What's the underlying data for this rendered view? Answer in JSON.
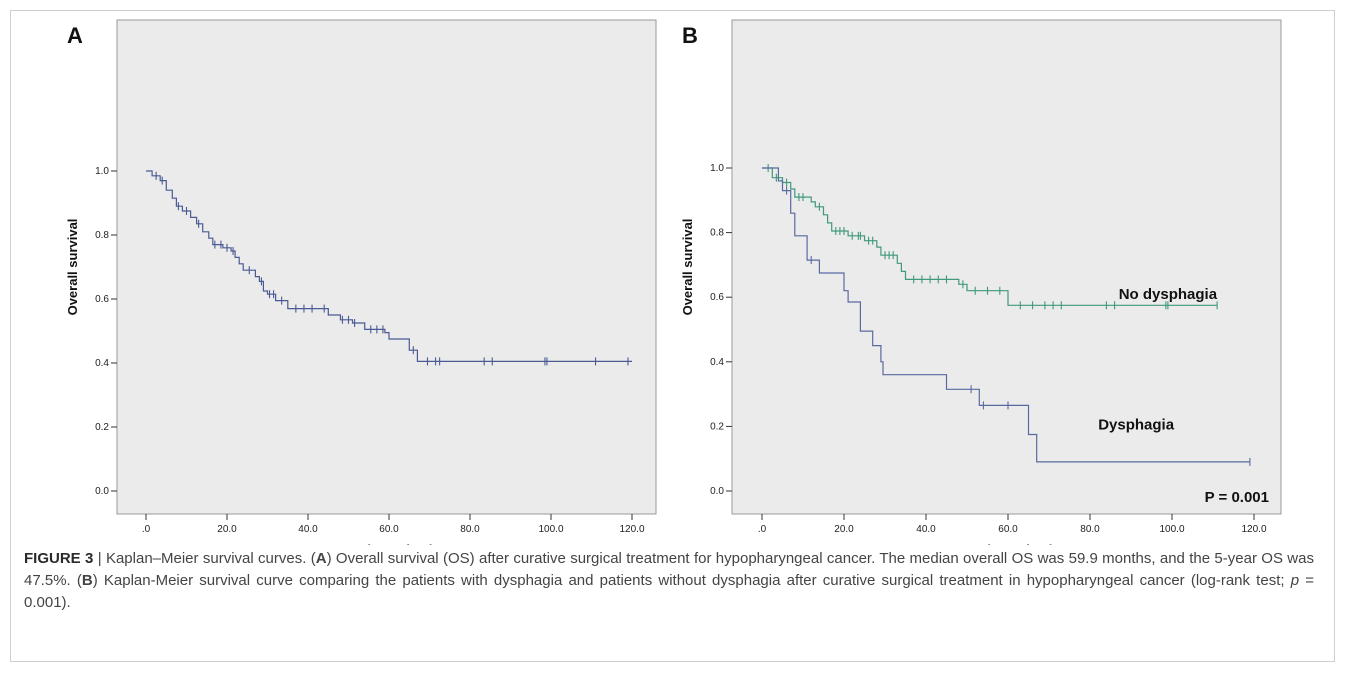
{
  "chart_data": [
    {
      "panel_label": "A",
      "type": "line",
      "step": true,
      "xlabel": "Months to death",
      "ylabel": "Overall survival",
      "xlim": [
        0,
        120
      ],
      "ylim": [
        0,
        1
      ],
      "x_ticks": [
        0,
        20,
        40,
        60,
        80,
        100,
        120
      ],
      "x_tick_labels": [
        ".0",
        "20.0",
        "40.0",
        "60.0",
        "80.0",
        "100.0",
        "120.0"
      ],
      "y_ticks": [
        0,
        0.2,
        0.4,
        0.6,
        0.8,
        1.0
      ],
      "y_tick_labels": [
        "0.0",
        "0.2",
        "0.4",
        "0.6",
        "0.8",
        "1.0"
      ],
      "series": [
        {
          "color": "#4a5a94",
          "steps": [
            [
              0,
              1.0
            ],
            [
              1.5,
              0.985
            ],
            [
              3.5,
              0.97
            ],
            [
              5,
              0.94
            ],
            [
              6.5,
              0.915
            ],
            [
              7.5,
              0.89
            ],
            [
              9,
              0.875
            ],
            [
              11,
              0.855
            ],
            [
              12.5,
              0.835
            ],
            [
              14,
              0.81
            ],
            [
              15.5,
              0.79
            ],
            [
              16.5,
              0.77
            ],
            [
              19,
              0.76
            ],
            [
              21,
              0.75
            ],
            [
              22,
              0.73
            ],
            [
              23,
              0.71
            ],
            [
              24,
              0.69
            ],
            [
              27,
              0.67
            ],
            [
              28,
              0.655
            ],
            [
              29,
              0.625
            ],
            [
              30,
              0.615
            ],
            [
              32,
              0.595
            ],
            [
              35,
              0.57
            ],
            [
              45,
              0.55
            ],
            [
              48,
              0.535
            ],
            [
              51,
              0.525
            ],
            [
              54,
              0.505
            ],
            [
              59,
              0.495
            ],
            [
              60,
              0.475
            ],
            [
              65,
              0.44
            ],
            [
              67,
              0.405
            ],
            [
              120,
              0.405
            ]
          ],
          "censor": [
            2.5,
            4,
            8,
            10,
            13,
            17,
            18.5,
            20,
            21.5,
            25.5,
            28.5,
            30.5,
            31.5,
            33.5,
            37,
            39,
            41,
            44,
            48.5,
            50,
            51.5,
            55.5,
            57,
            58.5,
            66,
            69.5,
            71.5,
            72.5,
            83.5,
            85.5,
            98.5,
            99,
            111,
            119
          ]
        }
      ]
    },
    {
      "panel_label": "B",
      "type": "line",
      "step": true,
      "xlabel": "Months to death",
      "ylabel": "Overall survival",
      "xlim": [
        0,
        120
      ],
      "ylim": [
        0,
        1
      ],
      "x_ticks": [
        0,
        20,
        40,
        60,
        80,
        100,
        120
      ],
      "x_tick_labels": [
        ".0",
        "20.0",
        "40.0",
        "60.0",
        "80.0",
        "100.0",
        "120.0"
      ],
      "y_ticks": [
        0,
        0.2,
        0.4,
        0.6,
        0.8,
        1.0
      ],
      "y_tick_labels": [
        "0.0",
        "0.2",
        "0.4",
        "0.6",
        "0.8",
        "1.0"
      ],
      "series": [
        {
          "name": "No dysphagia",
          "color": "#3f9a7a",
          "label_pos": [
            87,
            0.595
          ],
          "steps": [
            [
              0,
              1.0
            ],
            [
              2.5,
              0.97
            ],
            [
              5,
              0.955
            ],
            [
              7,
              0.935
            ],
            [
              8,
              0.91
            ],
            [
              12,
              0.895
            ],
            [
              13,
              0.88
            ],
            [
              15,
              0.855
            ],
            [
              16,
              0.83
            ],
            [
              17,
              0.805
            ],
            [
              21,
              0.79
            ],
            [
              25,
              0.775
            ],
            [
              28,
              0.755
            ],
            [
              29,
              0.73
            ],
            [
              33,
              0.705
            ],
            [
              34,
              0.68
            ],
            [
              35,
              0.655
            ],
            [
              48,
              0.64
            ],
            [
              50,
              0.62
            ],
            [
              60,
              0.575
            ],
            [
              111,
              0.575
            ]
          ],
          "censor": [
            1.5,
            3.5,
            6,
            9,
            10,
            14,
            18,
            19,
            20,
            22,
            23.5,
            24,
            26,
            27,
            30,
            31,
            32,
            37,
            39,
            41,
            43,
            45,
            49,
            52,
            55,
            58,
            63,
            66,
            69,
            71,
            73,
            84,
            86,
            98.5,
            99,
            111
          ]
        },
        {
          "name": "Dysphagia",
          "color": "#5a6aa0",
          "label_pos": [
            82,
            0.19
          ],
          "steps": [
            [
              0,
              1.0
            ],
            [
              4,
              0.96
            ],
            [
              5,
              0.93
            ],
            [
              7,
              0.86
            ],
            [
              8,
              0.79
            ],
            [
              11,
              0.715
            ],
            [
              14,
              0.675
            ],
            [
              20,
              0.62
            ],
            [
              21,
              0.585
            ],
            [
              24,
              0.495
            ],
            [
              27,
              0.45
            ],
            [
              29,
              0.4
            ],
            [
              29.5,
              0.36
            ],
            [
              45,
              0.315
            ],
            [
              53,
              0.265
            ],
            [
              65,
              0.175
            ],
            [
              67,
              0.09
            ],
            [
              119,
              0.09
            ]
          ],
          "censor": [
            6,
            12,
            51,
            54,
            60,
            119
          ]
        }
      ],
      "annotation": "P = 0.001"
    }
  ],
  "caption": {
    "fig_label": "FIGURE 3",
    "sep": " | ",
    "t1": "Kaplan–Meier survival curves. (",
    "a": "A",
    "t2": ") Overall survival (OS) after curative surgical treatment for hypopharyngeal cancer. The median overall OS was 59.9 months, and the 5-year OS was 47.5%. (",
    "b": "B",
    "t3": ") Kaplan-Meier survival curve comparing the patients with dysphagia and patients without dysphagia after curative surgical treatment in hypopharyngeal cancer (log-rank test; ",
    "p": "p",
    "t4": " = 0.001)."
  }
}
